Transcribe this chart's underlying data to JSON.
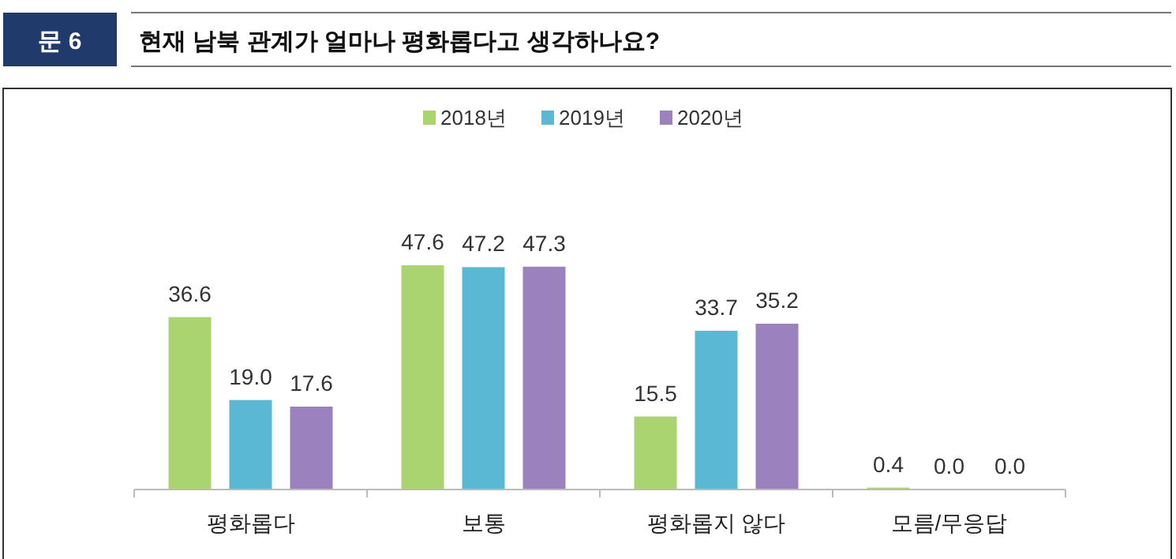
{
  "chart_data": {
    "type": "bar",
    "title": "현재 남북 관계가 얼마나 평화롭다고 생각하나요?",
    "annotations": [
      "문 6"
    ],
    "categories": [
      "평화롭다",
      "보통",
      "평화롭지 않다",
      "모름/무응답"
    ],
    "series": [
      {
        "name": "2018년",
        "color": "#a9d46f",
        "values": [
          36.6,
          47.6,
          15.5,
          0.4
        ],
        "value_labels": [
          "36.6",
          "47.6",
          "15.5",
          "0.4"
        ]
      },
      {
        "name": "2019년",
        "color": "#5bb8d4",
        "values": [
          19.0,
          47.2,
          33.7,
          0.0
        ],
        "value_labels": [
          "19.0",
          "47.2",
          "33.7",
          "0.0"
        ]
      },
      {
        "name": "2020년",
        "color": "#9b82bf",
        "values": [
          17.6,
          47.3,
          35.2,
          0.0
        ],
        "value_labels": [
          "17.6",
          "47.3",
          "35.2",
          "0.0"
        ]
      }
    ],
    "legend": "top"
  }
}
